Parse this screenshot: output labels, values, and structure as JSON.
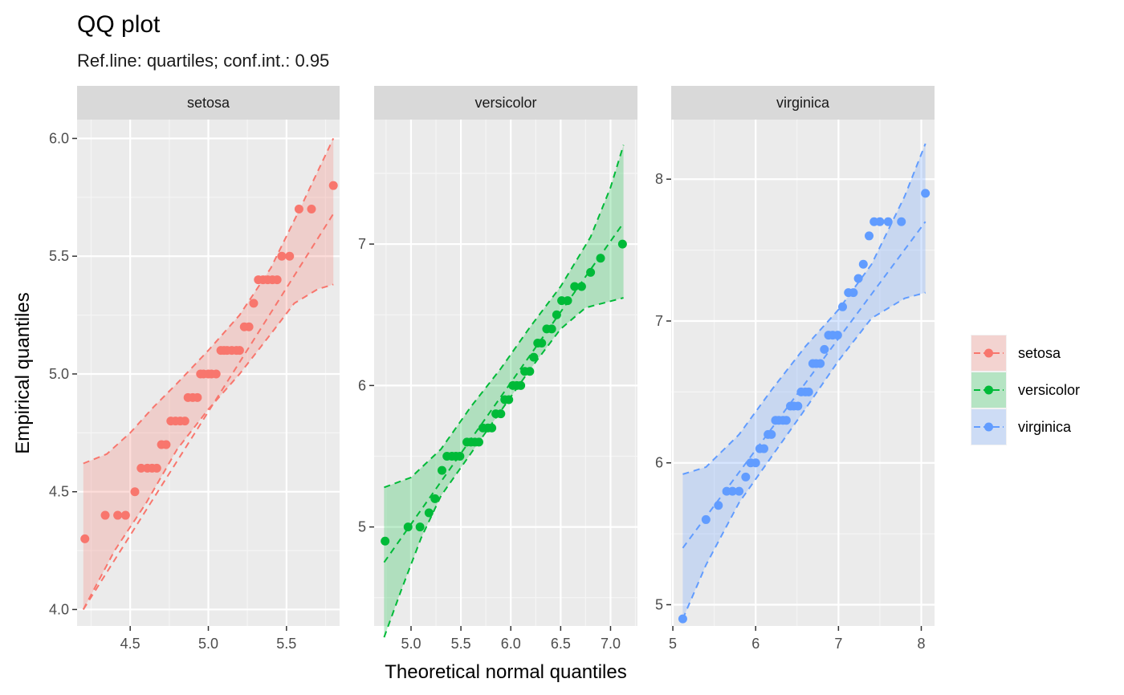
{
  "chart_data": {
    "type": "scatter",
    "title": "QQ plot",
    "subtitle": "Ref.line: quartiles; conf.int.: 0.95",
    "xlabel": "Theoretical normal quantiles",
    "ylabel": "Empirical quantiles",
    "grid": true,
    "legend_position": "right",
    "legend": [
      {
        "label": "setosa",
        "color": "#F8766D"
      },
      {
        "label": "versicolor",
        "color": "#00BA38"
      },
      {
        "label": "virginica",
        "color": "#619CFF"
      }
    ],
    "panels": [
      {
        "name": "setosa",
        "color": "#F8766D",
        "xlim": [
          4.16,
          5.84
        ],
        "ylim": [
          3.93,
          6.08
        ],
        "xticks": [
          4.5,
          5.0,
          5.5
        ],
        "xtick_labels": [
          "4.5",
          "5.0",
          "5.5"
        ],
        "yticks": [
          4.0,
          4.5,
          5.0,
          5.5,
          6.0
        ],
        "ytick_labels": [
          "4.0",
          "4.5",
          "5.0",
          "5.5",
          "6.0"
        ],
        "ref_line": [
          [
            4.2,
            4.0
          ],
          [
            5.8,
            5.68
          ]
        ],
        "band_upper": [
          [
            4.2,
            4.62
          ],
          [
            4.35,
            4.66
          ],
          [
            4.5,
            4.75
          ],
          [
            4.65,
            4.86
          ],
          [
            4.8,
            4.96
          ],
          [
            5.0,
            5.1
          ],
          [
            5.2,
            5.25
          ],
          [
            5.4,
            5.45
          ],
          [
            5.6,
            5.72
          ],
          [
            5.8,
            6.0
          ]
        ],
        "band_lower": [
          [
            4.2,
            4.0
          ],
          [
            4.4,
            4.25
          ],
          [
            4.6,
            4.45
          ],
          [
            4.8,
            4.68
          ],
          [
            5.0,
            4.85
          ],
          [
            5.2,
            5.0
          ],
          [
            5.4,
            5.17
          ],
          [
            5.55,
            5.3
          ],
          [
            5.7,
            5.36
          ],
          [
            5.8,
            5.38
          ]
        ],
        "points_x": [
          4.21,
          4.34,
          4.42,
          4.47,
          4.53,
          4.57,
          4.61,
          4.64,
          4.67,
          4.7,
          4.73,
          4.76,
          4.79,
          4.82,
          4.85,
          4.87,
          4.9,
          4.93,
          4.95,
          4.97,
          5.0,
          5.02,
          5.05,
          5.08,
          5.1,
          5.12,
          5.15,
          5.18,
          5.2,
          5.23,
          5.26,
          5.29,
          5.32,
          5.35,
          5.38,
          5.41,
          5.44,
          5.47,
          5.52,
          5.58,
          5.66,
          5.8
        ],
        "points_y": [
          4.3,
          4.4,
          4.4,
          4.4,
          4.5,
          4.6,
          4.6,
          4.6,
          4.6,
          4.7,
          4.7,
          4.8,
          4.8,
          4.8,
          4.8,
          4.9,
          4.9,
          4.9,
          5.0,
          5.0,
          5.0,
          5.0,
          5.0,
          5.1,
          5.1,
          5.1,
          5.1,
          5.1,
          5.1,
          5.2,
          5.2,
          5.3,
          5.4,
          5.4,
          5.4,
          5.4,
          5.4,
          5.5,
          5.5,
          5.7,
          5.7,
          5.8
        ]
      },
      {
        "name": "versicolor",
        "color": "#00BA38",
        "xlim": [
          4.63,
          7.27
        ],
        "ylim": [
          4.3,
          7.88
        ],
        "xticks": [
          5.0,
          5.5,
          6.0,
          6.5,
          7.0
        ],
        "xtick_labels": [
          "5.0",
          "5.5",
          "6.0",
          "6.5",
          "7.0"
        ],
        "yticks": [
          5,
          6,
          7
        ],
        "ytick_labels": [
          "5",
          "6",
          "7"
        ],
        "ref_line": [
          [
            4.73,
            4.75
          ],
          [
            7.13,
            7.15
          ]
        ],
        "band_upper": [
          [
            4.73,
            5.28
          ],
          [
            5.0,
            5.35
          ],
          [
            5.3,
            5.55
          ],
          [
            5.6,
            5.85
          ],
          [
            5.9,
            6.12
          ],
          [
            6.2,
            6.42
          ],
          [
            6.5,
            6.7
          ],
          [
            6.8,
            7.05
          ],
          [
            7.0,
            7.4
          ],
          [
            7.13,
            7.7
          ]
        ],
        "band_lower": [
          [
            4.73,
            4.22
          ],
          [
            4.9,
            4.55
          ],
          [
            5.1,
            4.92
          ],
          [
            5.3,
            5.22
          ],
          [
            5.6,
            5.52
          ],
          [
            5.9,
            5.82
          ],
          [
            6.2,
            6.12
          ],
          [
            6.5,
            6.4
          ],
          [
            6.75,
            6.55
          ],
          [
            7.13,
            6.62
          ]
        ],
        "points_x": [
          4.74,
          4.97,
          5.09,
          5.18,
          5.24,
          5.31,
          5.36,
          5.41,
          5.45,
          5.49,
          5.56,
          5.6,
          5.64,
          5.68,
          5.72,
          5.77,
          5.81,
          5.85,
          5.9,
          5.94,
          5.98,
          6.02,
          6.06,
          6.1,
          6.14,
          6.19,
          6.23,
          6.27,
          6.31,
          6.36,
          6.41,
          6.46,
          6.51,
          6.57,
          6.64,
          6.71,
          6.8,
          6.9,
          7.12
        ],
        "points_y": [
          4.9,
          5.0,
          5.0,
          5.1,
          5.2,
          5.4,
          5.5,
          5.5,
          5.5,
          5.5,
          5.6,
          5.6,
          5.6,
          5.6,
          5.7,
          5.7,
          5.7,
          5.8,
          5.8,
          5.9,
          5.9,
          6.0,
          6.0,
          6.0,
          6.1,
          6.1,
          6.2,
          6.3,
          6.3,
          6.4,
          6.4,
          6.5,
          6.6,
          6.6,
          6.7,
          6.7,
          6.8,
          6.9,
          7.0
        ]
      },
      {
        "name": "virginica",
        "color": "#619CFF",
        "xlim": [
          4.98,
          8.16
        ],
        "ylim": [
          4.85,
          8.42
        ],
        "xticks": [
          5,
          6,
          7,
          8
        ],
        "xtick_labels": [
          "5",
          "6",
          "7",
          "8"
        ],
        "yticks": [
          5,
          6,
          7,
          8
        ],
        "ytick_labels": [
          "5",
          "6",
          "7",
          "8"
        ],
        "ref_line": [
          [
            5.12,
            5.4
          ],
          [
            8.05,
            7.7
          ]
        ],
        "band_upper": [
          [
            5.12,
            5.92
          ],
          [
            5.4,
            5.97
          ],
          [
            5.8,
            6.2
          ],
          [
            6.2,
            6.52
          ],
          [
            6.6,
            6.82
          ],
          [
            7.0,
            7.08
          ],
          [
            7.4,
            7.4
          ],
          [
            7.8,
            7.88
          ],
          [
            8.05,
            8.25
          ]
        ],
        "band_lower": [
          [
            5.12,
            4.9
          ],
          [
            5.4,
            5.28
          ],
          [
            5.8,
            5.72
          ],
          [
            6.2,
            6.05
          ],
          [
            6.6,
            6.38
          ],
          [
            7.0,
            6.72
          ],
          [
            7.4,
            7.02
          ],
          [
            7.8,
            7.16
          ],
          [
            8.05,
            7.2
          ]
        ],
        "points_x": [
          5.12,
          5.4,
          5.55,
          5.65,
          5.72,
          5.8,
          5.88,
          5.94,
          6.0,
          6.05,
          6.1,
          6.15,
          6.19,
          6.24,
          6.28,
          6.33,
          6.37,
          6.42,
          6.46,
          6.51,
          6.55,
          6.6,
          6.64,
          6.69,
          6.73,
          6.78,
          6.83,
          6.88,
          6.93,
          6.99,
          7.05,
          7.12,
          7.18,
          7.24,
          7.3,
          7.37,
          7.43,
          7.5,
          7.6,
          7.76,
          8.05
        ],
        "points_y": [
          4.9,
          5.6,
          5.7,
          5.8,
          5.8,
          5.8,
          5.9,
          6.0,
          6.0,
          6.1,
          6.1,
          6.2,
          6.2,
          6.3,
          6.3,
          6.3,
          6.3,
          6.4,
          6.4,
          6.4,
          6.5,
          6.5,
          6.5,
          6.7,
          6.7,
          6.7,
          6.8,
          6.9,
          6.9,
          6.9,
          7.1,
          7.2,
          7.2,
          7.3,
          7.4,
          7.6,
          7.7,
          7.7,
          7.7,
          7.7,
          7.9
        ]
      }
    ]
  }
}
